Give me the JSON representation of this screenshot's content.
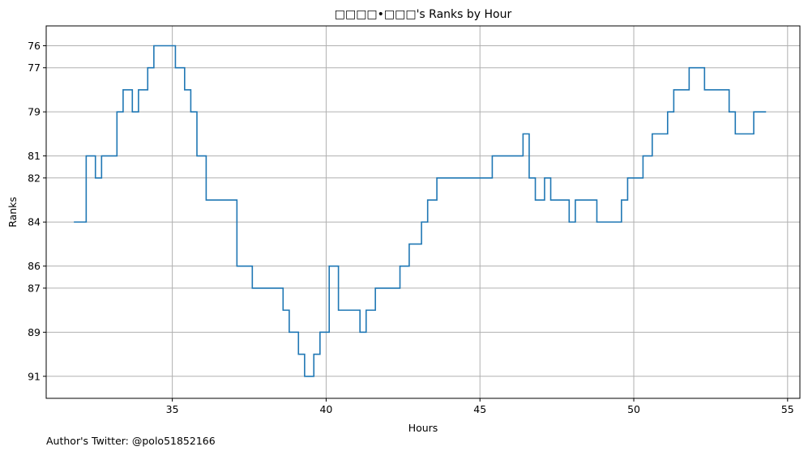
{
  "chart_data": {
    "type": "line",
    "step": true,
    "title": "□□□□•□□□'s Ranks by Hour",
    "xlabel": "Hours",
    "ylabel": "Ranks",
    "xlim": [
      30.9,
      55.4
    ],
    "ylim": [
      92.0,
      75.1
    ],
    "x_ticks": [
      35,
      40,
      45,
      50,
      55
    ],
    "y_ticks": [
      76,
      77,
      79,
      81,
      82,
      84,
      86,
      87,
      89,
      91
    ],
    "grid": true,
    "line_color": "#1f77b4",
    "series": [
      {
        "x": [
          31.8,
          32.2,
          32.5,
          32.7,
          33.2,
          33.4,
          33.7,
          33.9,
          34.2,
          34.4,
          35.1,
          35.4,
          35.6,
          35.8,
          36.1,
          37.1,
          37.6,
          38.6,
          38.8,
          39.1,
          39.3,
          39.6,
          39.8,
          40.1,
          40.4,
          41.1,
          41.3,
          41.6,
          42.4,
          42.7,
          43.1,
          43.3,
          43.6,
          45.4,
          46.4,
          46.6,
          46.8,
          47.1,
          47.3,
          47.9,
          48.1,
          48.8,
          49.6,
          49.8,
          50.3,
          50.6,
          51.1,
          51.3,
          51.8,
          52.3,
          53.1,
          53.3,
          53.9,
          54.3
        ],
        "y": [
          84,
          81,
          82,
          81,
          79,
          78,
          79,
          78,
          77,
          76,
          77,
          78,
          79,
          81,
          83,
          86,
          87,
          88,
          89,
          90,
          91,
          90,
          89,
          86,
          88,
          89,
          88,
          87,
          86,
          85,
          84,
          83,
          82,
          81,
          80,
          82,
          83,
          82,
          83,
          84,
          83,
          84,
          83,
          82,
          81,
          80,
          79,
          78,
          77,
          78,
          79,
          80,
          79,
          79
        ]
      }
    ]
  },
  "footer": {
    "author": "Author's Twitter: @polo51852166"
  }
}
